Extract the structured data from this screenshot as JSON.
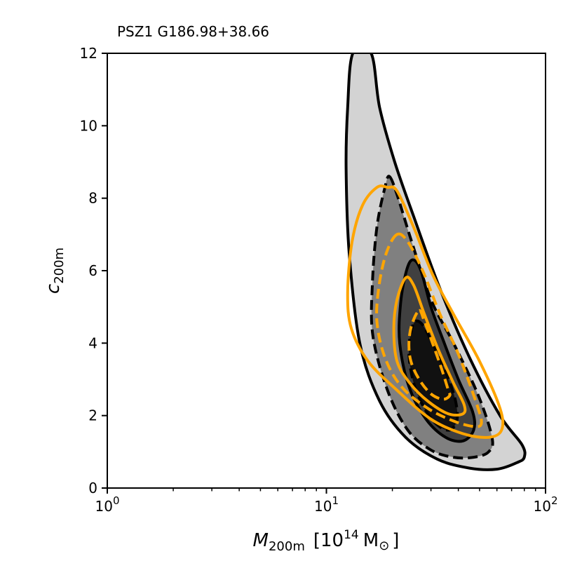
{
  "chart_data": {
    "type": "contour",
    "title": "PSZ1 G186.98+38.66",
    "xlabel": {
      "symbol": "M",
      "subscript": "200m",
      "bracket_open": "[10",
      "exponent": "14",
      "unit": "M",
      "unit_symbol": "⊙",
      "bracket_close": "]"
    },
    "ylabel": {
      "symbol": "c",
      "subscript": "200m"
    },
    "xscale": "log",
    "xlim": [
      1,
      100
    ],
    "ylim": [
      0,
      12
    ],
    "x_ticks": [
      {
        "value": 1,
        "base": "10",
        "exp": "0"
      },
      {
        "value": 10,
        "base": "10",
        "exp": "1"
      },
      {
        "value": 100,
        "base": "10",
        "exp": "2"
      }
    ],
    "y_ticks": [
      {
        "value": 0,
        "label": "0"
      },
      {
        "value": 2,
        "label": "2"
      },
      {
        "value": 4,
        "label": "4"
      },
      {
        "value": 6,
        "label": "6"
      },
      {
        "value": 8,
        "label": "8"
      },
      {
        "value": 10,
        "label": "10"
      },
      {
        "value": 12,
        "label": "12"
      }
    ],
    "colors": {
      "fill_outer": "#d3d3d3",
      "fill_mid": "#808080",
      "fill_inner": "#404040",
      "fill_core": "#111111",
      "black_line": "#000000",
      "orange_line": "#ffa500"
    },
    "contours": [
      {
        "name": "gray-outer",
        "fill": "fill_outer",
        "stroke": "black_line",
        "dashed": false,
        "points": [
          [
            13.2,
            12
          ],
          [
            16.0,
            12
          ],
          [
            17.5,
            10.5
          ],
          [
            20.5,
            9.0
          ],
          [
            25.0,
            7.5
          ],
          [
            33.0,
            5.5
          ],
          [
            45.0,
            3.6
          ],
          [
            62.0,
            2.0
          ],
          [
            78.0,
            1.2
          ],
          [
            80.0,
            0.85
          ],
          [
            74.0,
            0.7
          ],
          [
            60.0,
            0.52
          ],
          [
            45.0,
            0.55
          ],
          [
            32.0,
            0.8
          ],
          [
            23.0,
            1.4
          ],
          [
            17.5,
            2.4
          ],
          [
            14.2,
            4.0
          ],
          [
            12.7,
            6.5
          ],
          [
            12.3,
            8.8
          ],
          [
            12.5,
            10.5
          ],
          [
            13.2,
            12
          ]
        ]
      },
      {
        "name": "gray-mid-dashed",
        "fill": "fill_mid",
        "stroke": "black_line",
        "dashed": true,
        "points": [
          [
            19.4,
            8.6
          ],
          [
            21.0,
            8.1
          ],
          [
            24.5,
            6.8
          ],
          [
            30.0,
            5.2
          ],
          [
            38.0,
            4.0
          ],
          [
            49.0,
            2.6
          ],
          [
            57.0,
            1.4
          ],
          [
            55.0,
            1.0
          ],
          [
            47.0,
            0.85
          ],
          [
            38.0,
            0.85
          ],
          [
            30.0,
            1.05
          ],
          [
            23.5,
            1.6
          ],
          [
            19.0,
            2.7
          ],
          [
            16.3,
            4.2
          ],
          [
            16.2,
            5.6
          ],
          [
            17.0,
            7.2
          ],
          [
            18.5,
            8.3
          ],
          [
            19.4,
            8.6
          ]
        ]
      },
      {
        "name": "gray-inner",
        "fill": "fill_inner",
        "stroke": "black_line",
        "dashed": false,
        "points": [
          [
            24.8,
            6.3
          ],
          [
            27.0,
            6.0
          ],
          [
            30.0,
            5.0
          ],
          [
            34.5,
            4.0
          ],
          [
            40.0,
            3.0
          ],
          [
            46.5,
            2.1
          ],
          [
            47.0,
            1.6
          ],
          [
            42.0,
            1.3
          ],
          [
            35.0,
            1.4
          ],
          [
            28.5,
            1.9
          ],
          [
            23.8,
            2.8
          ],
          [
            21.6,
            4.0
          ],
          [
            21.8,
            5.1
          ],
          [
            23.2,
            6.0
          ],
          [
            24.8,
            6.3
          ]
        ]
      },
      {
        "name": "gray-core-dashed",
        "fill": "fill_core",
        "stroke": "black_line",
        "dashed": true,
        "points": [
          [
            25.5,
            4.6
          ],
          [
            27.5,
            4.5
          ],
          [
            30.5,
            4.0
          ],
          [
            34.5,
            3.3
          ],
          [
            38.5,
            2.5
          ],
          [
            39.5,
            1.9
          ],
          [
            36.5,
            1.6
          ],
          [
            32.0,
            1.75
          ],
          [
            28.0,
            2.2
          ],
          [
            25.0,
            2.9
          ],
          [
            23.8,
            3.7
          ],
          [
            24.3,
            4.3
          ],
          [
            25.5,
            4.6
          ]
        ]
      },
      {
        "name": "orange-outer",
        "fill": "none",
        "stroke": "orange_line",
        "dashed": false,
        "points": [
          [
            19.0,
            8.3
          ],
          [
            21.0,
            8.2
          ],
          [
            25.0,
            7.2
          ],
          [
            30.5,
            5.9
          ],
          [
            38.0,
            4.8
          ],
          [
            50.0,
            3.5
          ],
          [
            62.0,
            2.2
          ],
          [
            63.0,
            1.6
          ],
          [
            55.0,
            1.4
          ],
          [
            42.0,
            1.5
          ],
          [
            30.0,
            1.9
          ],
          [
            21.0,
            2.7
          ],
          [
            15.5,
            3.5
          ],
          [
            13.0,
            4.4
          ],
          [
            12.5,
            5.4
          ],
          [
            13.1,
            6.8
          ],
          [
            14.6,
            7.8
          ],
          [
            17.0,
            8.3
          ],
          [
            19.0,
            8.3
          ]
        ]
      },
      {
        "name": "orange-mid-dashed",
        "fill": "none",
        "stroke": "orange_line",
        "dashed": true,
        "points": [
          [
            21.0,
            7.0
          ],
          [
            23.5,
            6.8
          ],
          [
            27.5,
            6.0
          ],
          [
            33.0,
            4.8
          ],
          [
            40.0,
            3.7
          ],
          [
            48.0,
            2.4
          ],
          [
            51.0,
            1.8
          ],
          [
            47.0,
            1.7
          ],
          [
            38.0,
            1.85
          ],
          [
            29.0,
            2.2
          ],
          [
            22.0,
            2.8
          ],
          [
            18.5,
            3.6
          ],
          [
            17.0,
            4.6
          ],
          [
            17.4,
            5.6
          ],
          [
            18.8,
            6.5
          ],
          [
            21.0,
            7.0
          ]
        ]
      },
      {
        "name": "orange-inner",
        "fill": "none",
        "stroke": "orange_line",
        "dashed": false,
        "points": [
          [
            23.0,
            5.8
          ],
          [
            25.0,
            5.6
          ],
          [
            28.0,
            4.8
          ],
          [
            32.5,
            3.8
          ],
          [
            38.0,
            2.9
          ],
          [
            42.5,
            2.3
          ],
          [
            42.0,
            2.05
          ],
          [
            36.0,
            2.05
          ],
          [
            29.0,
            2.4
          ],
          [
            24.0,
            2.9
          ],
          [
            21.0,
            3.5
          ],
          [
            20.3,
            4.4
          ],
          [
            21.0,
            5.2
          ],
          [
            23.0,
            5.8
          ]
        ]
      },
      {
        "name": "orange-core-dashed",
        "fill": "none",
        "stroke": "orange_line",
        "dashed": true,
        "points": [
          [
            26.5,
            4.9
          ],
          [
            28.0,
            4.6
          ],
          [
            30.5,
            4.0
          ],
          [
            33.5,
            3.3
          ],
          [
            36.0,
            2.7
          ],
          [
            36.5,
            2.55
          ],
          [
            34.0,
            2.45
          ],
          [
            30.0,
            2.6
          ],
          [
            26.5,
            3.0
          ],
          [
            24.3,
            3.5
          ],
          [
            23.8,
            4.0
          ],
          [
            24.5,
            4.5
          ],
          [
            26.5,
            4.9
          ]
        ]
      }
    ]
  }
}
